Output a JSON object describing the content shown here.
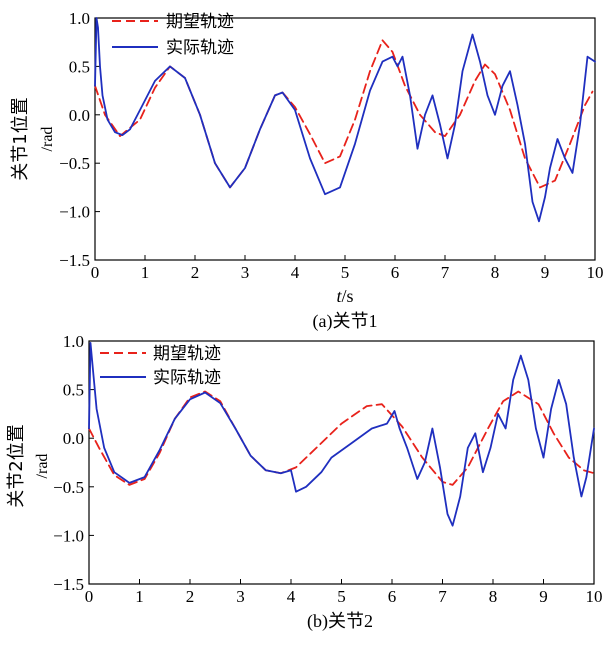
{
  "chart_data": [
    {
      "type": "line",
      "caption": "(a)关节1",
      "ylabel_cn": "关节1位置",
      "ylabel_unit": "/rad",
      "xlabel_var": "t",
      "xlabel_unit": "/s",
      "xlim": [
        0,
        10
      ],
      "ylim": [
        -1.5,
        1.0
      ],
      "xticks": [
        "0",
        "1",
        "2",
        "3",
        "4",
        "5",
        "6",
        "7",
        "8",
        "9",
        "10"
      ],
      "yticks": [
        "1.0",
        "0.5",
        "0.0",
        "−0.5",
        "−1.0",
        "−1.5"
      ],
      "legend_position": "top-left",
      "grid": false,
      "series": [
        {
          "name": "期望轨迹",
          "color": "#e8221b",
          "dash": true,
          "x": [
            0,
            0.2,
            0.5,
            0.9,
            1.2,
            1.5,
            1.8,
            2.1,
            2.4,
            2.7,
            3.0,
            3.3,
            3.6,
            3.75,
            4.0,
            4.3,
            4.6,
            4.9,
            5.2,
            5.5,
            5.75,
            5.95,
            6.2,
            6.5,
            6.8,
            7.0,
            7.3,
            7.6,
            7.8,
            8.0,
            8.3,
            8.6,
            8.9,
            9.2,
            9.5,
            9.8,
            9.95
          ],
          "y": [
            0.3,
            0.0,
            -0.22,
            -0.05,
            0.28,
            0.5,
            0.38,
            0.0,
            -0.5,
            -0.75,
            -0.55,
            -0.15,
            0.2,
            0.23,
            0.08,
            -0.2,
            -0.5,
            -0.43,
            -0.05,
            0.45,
            0.77,
            0.65,
            0.3,
            0.0,
            -0.18,
            -0.22,
            0.0,
            0.35,
            0.52,
            0.42,
            0.05,
            -0.45,
            -0.75,
            -0.68,
            -0.3,
            0.1,
            0.24
          ]
        },
        {
          "name": "实际轨迹",
          "color": "#1f2fbf",
          "dash": false,
          "x": [
            0,
            0.03,
            0.06,
            0.1,
            0.15,
            0.25,
            0.4,
            0.55,
            0.7,
            0.9,
            1.2,
            1.5,
            1.8,
            2.1,
            2.4,
            2.7,
            3.0,
            3.3,
            3.6,
            3.75,
            4.0,
            4.3,
            4.6,
            4.9,
            5.2,
            5.5,
            5.75,
            5.95,
            6.05,
            6.15,
            6.3,
            6.45,
            6.6,
            6.75,
            6.9,
            7.05,
            7.2,
            7.35,
            7.55,
            7.7,
            7.85,
            8.0,
            8.15,
            8.3,
            8.45,
            8.6,
            8.75,
            8.88,
            9.0,
            9.1,
            9.25,
            9.4,
            9.55,
            9.7,
            9.85,
            10.0
          ],
          "y": [
            0.3,
            1.0,
            0.9,
            0.5,
            0.2,
            -0.05,
            -0.18,
            -0.21,
            -0.15,
            0.05,
            0.35,
            0.5,
            0.38,
            0.0,
            -0.5,
            -0.75,
            -0.55,
            -0.15,
            0.2,
            0.23,
            0.05,
            -0.45,
            -0.82,
            -0.75,
            -0.3,
            0.25,
            0.55,
            0.6,
            0.5,
            0.6,
            0.2,
            -0.35,
            0.0,
            0.2,
            -0.1,
            -0.45,
            -0.1,
            0.45,
            0.83,
            0.55,
            0.2,
            0.0,
            0.3,
            0.45,
            0.1,
            -0.3,
            -0.9,
            -1.1,
            -0.85,
            -0.55,
            -0.25,
            -0.45,
            -0.6,
            -0.1,
            0.6,
            0.55
          ]
        }
      ]
    },
    {
      "type": "line",
      "caption": "(b)关节2",
      "ylabel_cn": "关节2位置",
      "ylabel_unit": "/rad",
      "xlim": [
        0,
        10
      ],
      "ylim": [
        -1.5,
        1.0
      ],
      "xticks": [
        "0",
        "1",
        "2",
        "3",
        "4",
        "5",
        "6",
        "7",
        "8",
        "9",
        "10"
      ],
      "yticks": [
        "1.0",
        "0.5",
        "0.0",
        "−0.5",
        "−1.0",
        "−1.5"
      ],
      "legend_position": "top-center",
      "grid": false,
      "series": [
        {
          "name": "期望轨迹",
          "color": "#e8221b",
          "dash": true,
          "x": [
            0,
            0.2,
            0.5,
            0.8,
            1.1,
            1.4,
            1.7,
            2.0,
            2.3,
            2.6,
            2.9,
            3.2,
            3.5,
            3.8,
            4.1,
            4.5,
            5.0,
            5.5,
            5.8,
            6.2,
            6.6,
            7.0,
            7.2,
            7.5,
            7.9,
            8.2,
            8.5,
            8.9,
            9.2,
            9.5,
            9.8,
            10.0
          ],
          "y": [
            0.1,
            -0.1,
            -0.38,
            -0.48,
            -0.42,
            -0.15,
            0.2,
            0.42,
            0.48,
            0.38,
            0.1,
            -0.18,
            -0.33,
            -0.36,
            -0.3,
            -0.1,
            0.15,
            0.33,
            0.35,
            0.12,
            -0.2,
            -0.45,
            -0.48,
            -0.3,
            0.1,
            0.38,
            0.48,
            0.35,
            0.05,
            -0.2,
            -0.33,
            -0.36
          ]
        },
        {
          "name": "实际轨迹",
          "color": "#1f2fbf",
          "dash": false,
          "x": [
            0,
            0.03,
            0.08,
            0.15,
            0.3,
            0.5,
            0.8,
            1.1,
            1.4,
            1.7,
            2.0,
            2.3,
            2.6,
            2.9,
            3.2,
            3.5,
            3.8,
            4.0,
            4.1,
            4.3,
            4.6,
            4.8,
            5.2,
            5.6,
            5.9,
            6.05,
            6.15,
            6.3,
            6.5,
            6.65,
            6.8,
            6.95,
            7.1,
            7.2,
            7.35,
            7.5,
            7.65,
            7.8,
            7.95,
            8.1,
            8.25,
            8.4,
            8.55,
            8.7,
            8.85,
            9.0,
            9.15,
            9.3,
            9.45,
            9.6,
            9.75,
            9.85,
            10.0
          ],
          "y": [
            0.1,
            0.98,
            0.7,
            0.3,
            -0.1,
            -0.35,
            -0.46,
            -0.4,
            -0.12,
            0.2,
            0.4,
            0.47,
            0.36,
            0.1,
            -0.18,
            -0.33,
            -0.36,
            -0.33,
            -0.55,
            -0.5,
            -0.35,
            -0.2,
            -0.05,
            0.1,
            0.15,
            0.28,
            0.1,
            -0.1,
            -0.42,
            -0.25,
            0.1,
            -0.3,
            -0.78,
            -0.9,
            -0.6,
            -0.1,
            0.05,
            -0.35,
            -0.1,
            0.25,
            0.1,
            0.6,
            0.85,
            0.6,
            0.1,
            -0.2,
            0.3,
            0.6,
            0.35,
            -0.2,
            -0.6,
            -0.4,
            0.1
          ]
        }
      ]
    }
  ]
}
